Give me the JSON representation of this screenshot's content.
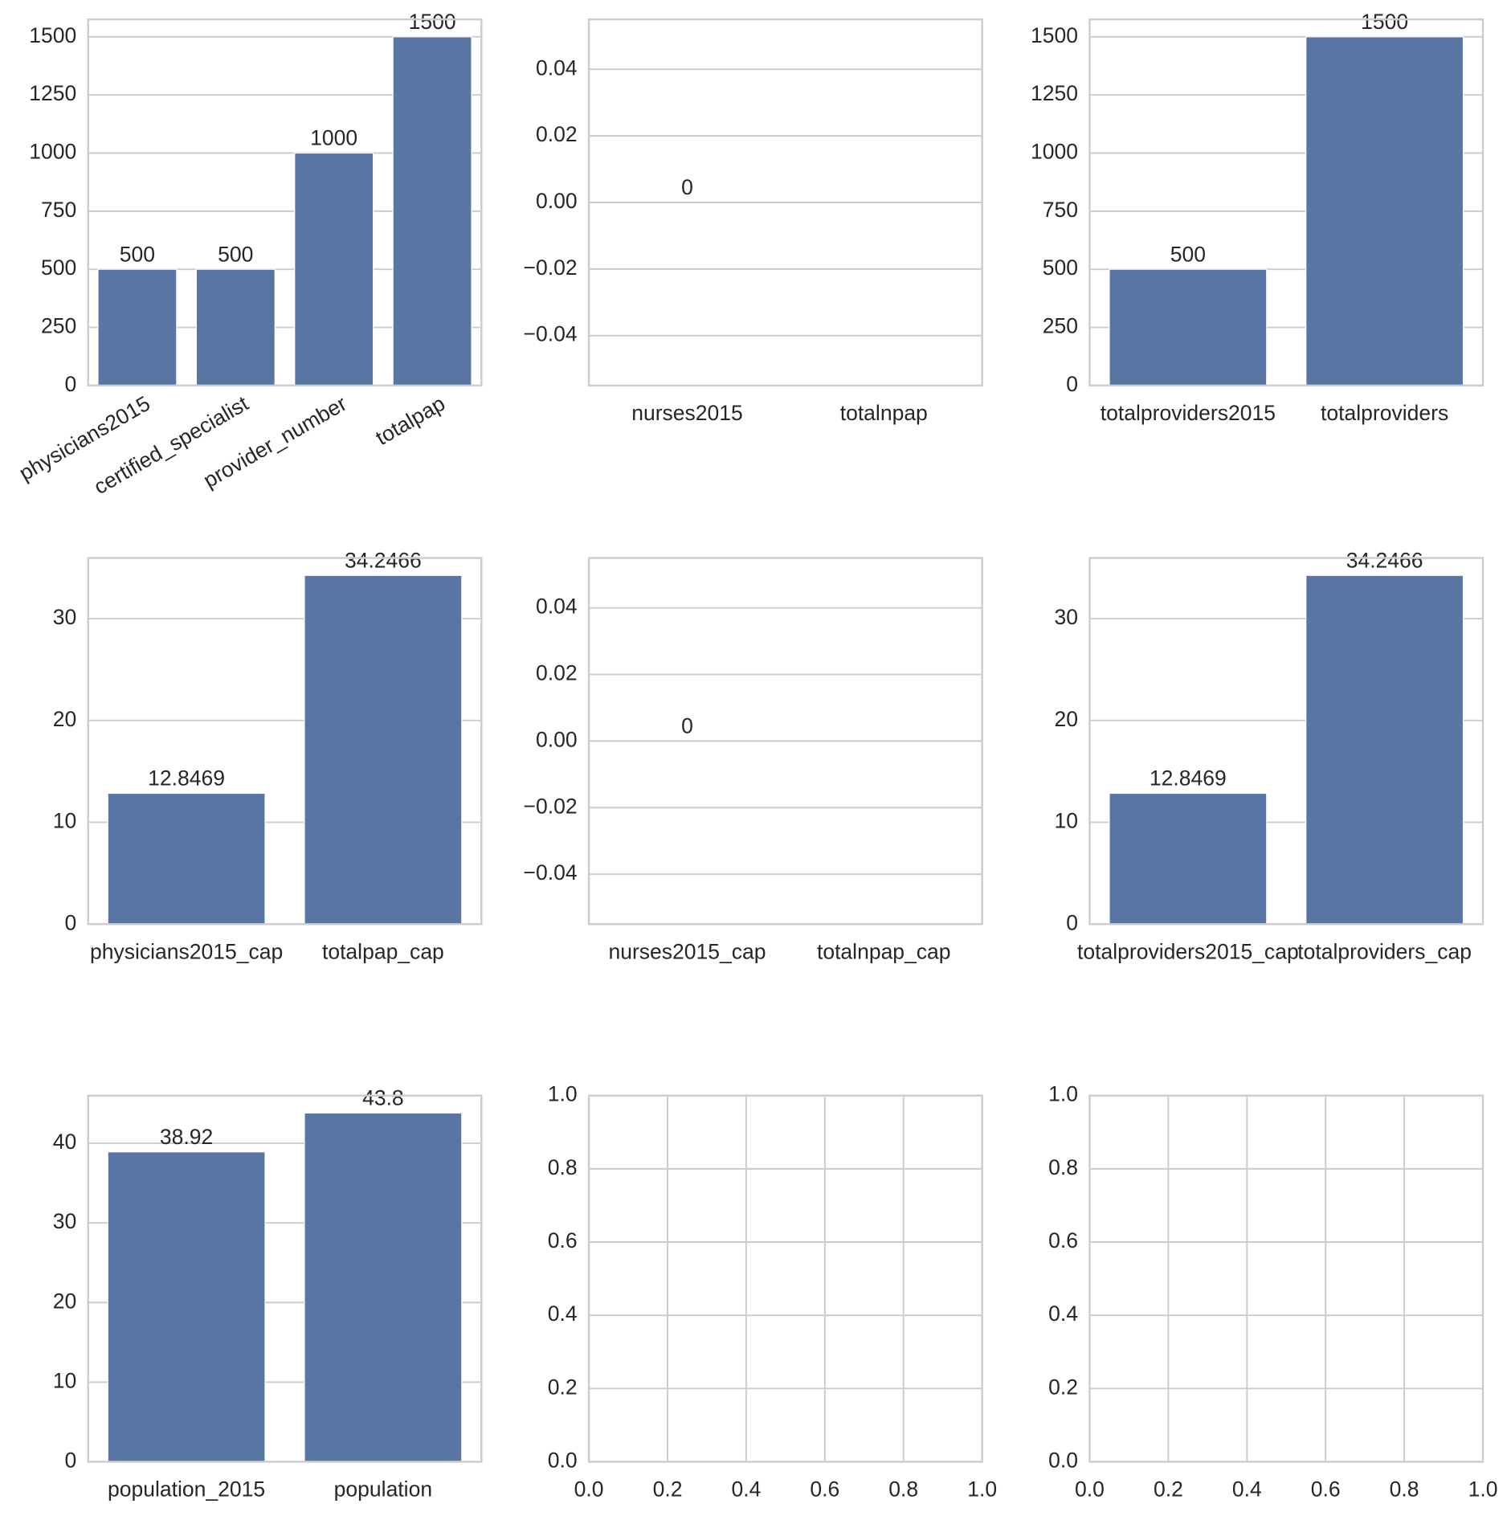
{
  "chart_data": [
    {
      "type": "bar",
      "categories": [
        "physicians2015",
        "certified_specialist",
        "provider_number",
        "totalpap"
      ],
      "values": [
        500,
        500,
        1000,
        1500
      ],
      "color": "#5975a4",
      "ylim": [
        0,
        1575
      ],
      "yticks": [
        0,
        250,
        500,
        750,
        1000,
        1250,
        1500
      ],
      "grid": true,
      "xtick_rotation": 30
    },
    {
      "type": "bar",
      "categories": [
        "nurses2015",
        "totalnpap"
      ],
      "values": [
        0,
        null
      ],
      "color": "#5975a4",
      "ylim": [
        -0.055,
        0.055
      ],
      "yticks": [
        {
          "value": -0.04,
          "label": "−0.04"
        },
        {
          "value": -0.02,
          "label": "−0.02"
        },
        {
          "value": 0,
          "label": "0.00"
        },
        {
          "value": 0.02,
          "label": "0.02"
        },
        {
          "value": 0.04,
          "label": "0.04"
        }
      ],
      "grid": true
    },
    {
      "type": "bar",
      "categories": [
        "totalproviders2015",
        "totalproviders"
      ],
      "values": [
        500,
        1500
      ],
      "color": "#5975a4",
      "ylim": [
        0,
        1575
      ],
      "yticks": [
        0,
        250,
        500,
        750,
        1000,
        1250,
        1500
      ],
      "grid": true
    },
    {
      "type": "bar",
      "categories": [
        "physicians2015_cap",
        "totalpap_cap"
      ],
      "values": [
        12.8469,
        34.2466
      ],
      "color": "#5975a4",
      "ylim": [
        0,
        35.96
      ],
      "yticks": [
        0,
        10,
        20,
        30
      ],
      "grid": true
    },
    {
      "type": "bar",
      "categories": [
        "nurses2015_cap",
        "totalnpap_cap"
      ],
      "values": [
        0,
        null
      ],
      "color": "#5975a4",
      "ylim": [
        -0.055,
        0.055
      ],
      "yticks": [
        {
          "value": -0.04,
          "label": "−0.04"
        },
        {
          "value": -0.02,
          "label": "−0.02"
        },
        {
          "value": 0,
          "label": "0.00"
        },
        {
          "value": 0.02,
          "label": "0.02"
        },
        {
          "value": 0.04,
          "label": "0.04"
        }
      ],
      "grid": true
    },
    {
      "type": "bar",
      "categories": [
        "totalproviders2015_cap",
        "totalproviders_cap"
      ],
      "values": [
        12.8469,
        34.2466
      ],
      "color": "#5975a4",
      "ylim": [
        0,
        35.96
      ],
      "yticks": [
        0,
        10,
        20,
        30
      ],
      "grid": true
    },
    {
      "type": "bar",
      "categories": [
        "population_2015",
        "population"
      ],
      "values": [
        38.92,
        43.8
      ],
      "color": "#5975a4",
      "ylim": [
        0,
        45.99
      ],
      "yticks": [
        0,
        10,
        20,
        30,
        40
      ],
      "grid": true
    },
    {
      "type": "empty",
      "xlim": [
        0,
        1
      ],
      "ylim": [
        0,
        1
      ],
      "xticks": [
        {
          "value": 0,
          "label": "0.0"
        },
        0.2,
        0.4,
        0.6,
        0.8,
        {
          "value": 1,
          "label": "1.0"
        }
      ],
      "yticks": [
        {
          "value": 0,
          "label": "0.0"
        },
        0.2,
        0.4,
        0.6,
        0.8,
        {
          "value": 1,
          "label": "1.0"
        }
      ],
      "grid": true
    },
    {
      "type": "empty",
      "xlim": [
        0,
        1
      ],
      "ylim": [
        0,
        1
      ],
      "xticks": [
        {
          "value": 0,
          "label": "0.0"
        },
        0.2,
        0.4,
        0.6,
        0.8,
        {
          "value": 1,
          "label": "1.0"
        }
      ],
      "yticks": [
        {
          "value": 0,
          "label": "0.0"
        },
        0.2,
        0.4,
        0.6,
        0.8,
        {
          "value": 1,
          "label": "1.0"
        }
      ],
      "grid": true
    }
  ]
}
